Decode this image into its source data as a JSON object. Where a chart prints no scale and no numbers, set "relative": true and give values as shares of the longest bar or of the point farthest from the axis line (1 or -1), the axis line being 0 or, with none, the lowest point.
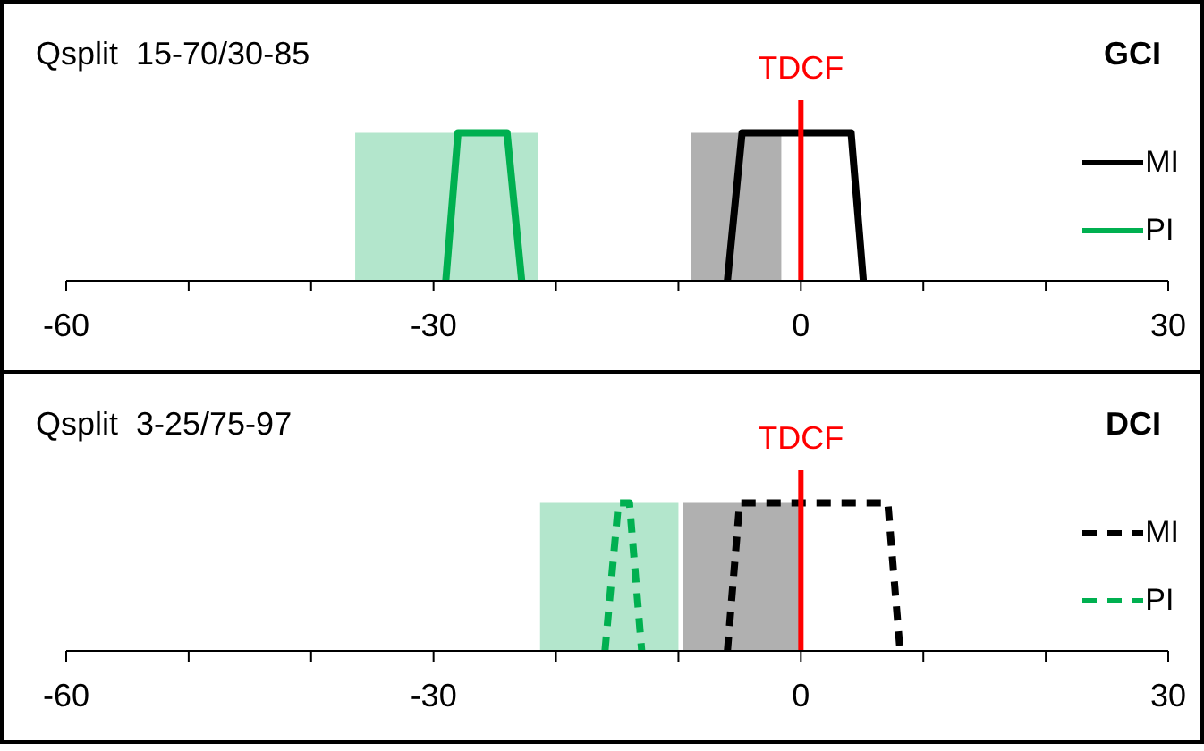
{
  "chart_data": [
    {
      "type": "line",
      "title": "Qsplit  15-70/30-85",
      "annotations": [
        "GCI"
      ],
      "relative": true,
      "xlim": [
        -60,
        30
      ],
      "xticks": [
        -60,
        {
          "value": -50,
          "label": null
        },
        {
          "value": -40,
          "label": null
        },
        -30,
        {
          "value": -20,
          "label": null
        },
        {
          "value": -10,
          "label": null
        },
        0,
        {
          "value": 10,
          "label": null
        },
        {
          "value": 20,
          "label": null
        },
        30
      ],
      "legend": "right",
      "line_style": "solid",
      "grid": false,
      "series": [
        {
          "name": "MI",
          "color": "#000000",
          "x": [
            -6.0,
            -4.8,
            4.1,
            5.1
          ],
          "values": [
            0,
            1,
            1,
            0
          ]
        },
        {
          "name": "PI",
          "color": "#00b050",
          "x": [
            -29.0,
            -28.0,
            -24.0,
            -22.8
          ],
          "values": [
            0,
            1,
            1,
            0
          ]
        }
      ],
      "bands": [
        {
          "axis": "x",
          "from": -36.4,
          "to": -21.5,
          "color": "#b3e6cc"
        },
        {
          "axis": "x",
          "from": -9.0,
          "to": -1.6,
          "color": "#b0b0b0"
        }
      ],
      "ref_lines": [
        {
          "axis": "x",
          "value": 0,
          "label": "TDCF",
          "color": "#ff0000"
        }
      ]
    },
    {
      "type": "line",
      "title": "Qsplit  3-25/75-97",
      "annotations": [
        "DCI"
      ],
      "relative": true,
      "xlim": [
        -60,
        30
      ],
      "xticks": [
        -60,
        {
          "value": -50,
          "label": null
        },
        {
          "value": -40,
          "label": null
        },
        -30,
        {
          "value": -20,
          "label": null
        },
        {
          "value": -10,
          "label": null
        },
        0,
        {
          "value": 10,
          "label": null
        },
        {
          "value": 20,
          "label": null
        },
        30
      ],
      "legend": "right",
      "line_style": "dashed",
      "grid": false,
      "series": [
        {
          "name": "MI",
          "color": "#000000",
          "x": [
            -6.0,
            -5.0,
            7.1,
            8.1
          ],
          "values": [
            0,
            1,
            1,
            0
          ]
        },
        {
          "name": "PI",
          "color": "#00b050",
          "x": [
            -16.0,
            -14.9,
            -14.0,
            -13.0
          ],
          "values": [
            0,
            1,
            1,
            0
          ]
        }
      ],
      "bands": [
        {
          "axis": "x",
          "from": -21.3,
          "to": -10.0,
          "color": "#b3e6cc"
        },
        {
          "axis": "x",
          "from": -9.6,
          "to": 0,
          "color": "#b0b0b0"
        }
      ],
      "ref_lines": [
        {
          "axis": "x",
          "value": 0,
          "label": "TDCF",
          "color": "#ff0000"
        }
      ]
    }
  ]
}
